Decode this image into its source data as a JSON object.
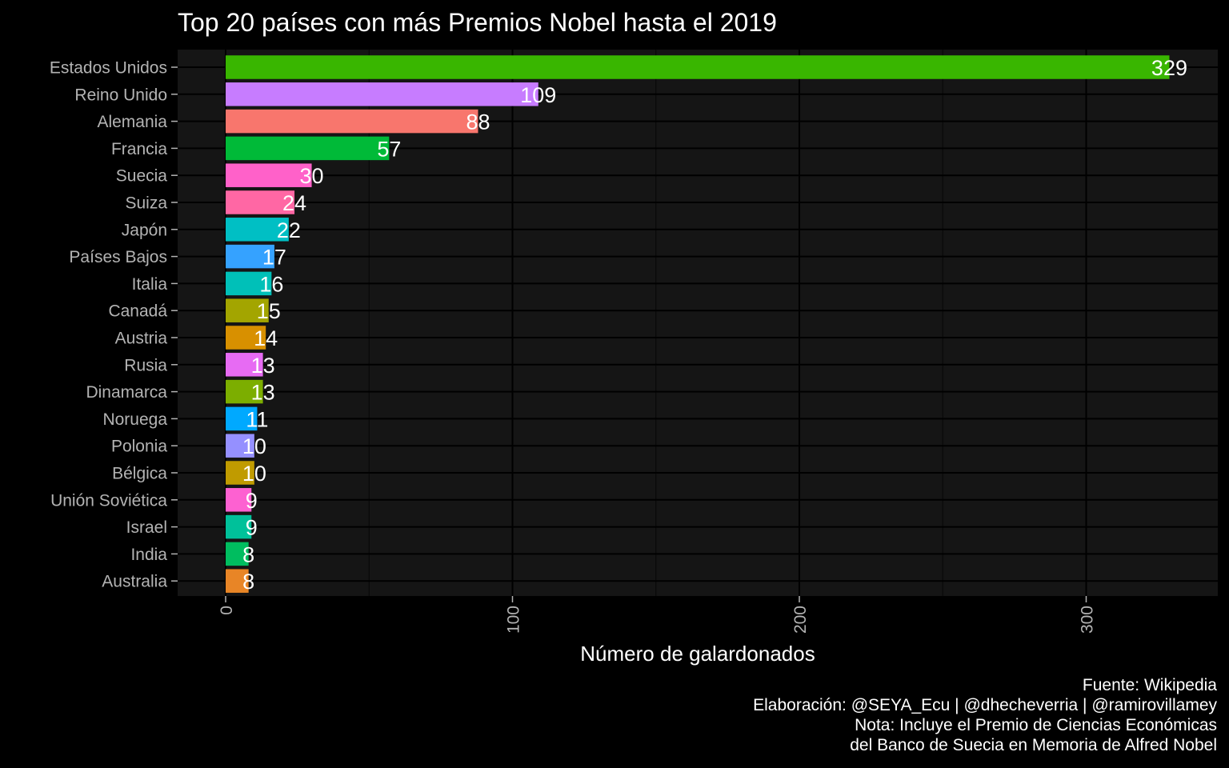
{
  "chart_data": {
    "type": "bar",
    "orientation": "horizontal",
    "title": "Top 20 países con más Premios Nobel hasta el 2019",
    "xlabel": "Número de galardonados",
    "ylabel": "",
    "xlim": [
      0,
      345
    ],
    "xticks": [
      0,
      100,
      200,
      300
    ],
    "grid": true,
    "legend": "none",
    "categories": [
      "Estados Unidos",
      "Reino Unido",
      "Alemania",
      "Francia",
      "Suecia",
      "Suiza",
      "Japón",
      "Países Bajos",
      "Italia",
      "Canadá",
      "Austria",
      "Rusia",
      "Dinamarca",
      "Noruega",
      "Polonia",
      "Bélgica",
      "Unión Soviética",
      "Israel",
      "India",
      "Australia"
    ],
    "values": [
      329,
      109,
      88,
      57,
      30,
      24,
      22,
      17,
      16,
      15,
      14,
      13,
      13,
      11,
      10,
      10,
      9,
      9,
      8,
      8
    ],
    "colors": [
      "#39b600",
      "#c77cff",
      "#f8766d",
      "#00ba38",
      "#ff61c9",
      "#ff67a4",
      "#00bfc4",
      "#35a2ff",
      "#00c0b8",
      "#a3a500",
      "#d89000",
      "#e76bf3",
      "#7cae00",
      "#00a9ff",
      "#9590ff",
      "#c09b00",
      "#fd61d1",
      "#00c19a",
      "#00bd5f",
      "#e88526"
    ],
    "caption": [
      "Fuente: Wikipedia",
      "Elaboración: @SEYA_Ecu | @dhecheverria | @ramirovillamey",
      "Nota: Incluye el Premio de Ciencias Económicas",
      "del Banco de Suecia en Memoria de Alfred Nobel"
    ]
  }
}
